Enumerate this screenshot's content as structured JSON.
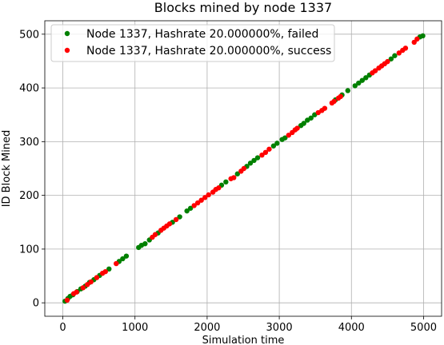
{
  "chart_data": {
    "type": "scatter",
    "title": "Blocks mined by node 1337",
    "xlabel": "Simulation time",
    "ylabel": "ID Block Mined",
    "xlim": [
      -250,
      5250
    ],
    "ylim": [
      -25,
      525
    ],
    "xticks": [
      0,
      1000,
      2000,
      3000,
      4000,
      5000
    ],
    "yticks": [
      0,
      100,
      200,
      300,
      400,
      500
    ],
    "grid": true,
    "legend_position": "top-left",
    "series": [
      {
        "name": "Node 1337, Hashrate 20.000000%, failed",
        "color": "#008000",
        "points": [
          [
            30,
            3
          ],
          [
            70,
            8
          ],
          [
            100,
            12
          ],
          [
            140,
            15
          ],
          [
            200,
            21
          ],
          [
            250,
            26
          ],
          [
            310,
            31
          ],
          [
            370,
            38
          ],
          [
            430,
            43
          ],
          [
            510,
            51
          ],
          [
            640,
            63
          ],
          [
            780,
            77
          ],
          [
            830,
            82
          ],
          [
            880,
            87
          ],
          [
            1050,
            103
          ],
          [
            1090,
            107
          ],
          [
            1140,
            110
          ],
          [
            1200,
            117
          ],
          [
            1320,
            130
          ],
          [
            1520,
            150
          ],
          [
            1620,
            160
          ],
          [
            1720,
            171
          ],
          [
            1770,
            176
          ],
          [
            2200,
            219
          ],
          [
            2260,
            225
          ],
          [
            2420,
            240
          ],
          [
            2550,
            254
          ],
          [
            2600,
            260
          ],
          [
            2650,
            265
          ],
          [
            2700,
            270
          ],
          [
            2920,
            292
          ],
          [
            2970,
            297
          ],
          [
            3040,
            304
          ],
          [
            3080,
            307
          ],
          [
            3300,
            330
          ],
          [
            3340,
            334
          ],
          [
            3390,
            340
          ],
          [
            3440,
            344
          ],
          [
            3490,
            350
          ],
          [
            3780,
            378
          ],
          [
            3870,
            387
          ],
          [
            3950,
            395
          ],
          [
            4050,
            404
          ],
          [
            4100,
            409
          ],
          [
            4150,
            414
          ],
          [
            4200,
            419
          ],
          [
            4250,
            424
          ],
          [
            4550,
            454
          ],
          [
            4600,
            460
          ],
          [
            4950,
            495
          ],
          [
            4990,
            497
          ]
        ]
      },
      {
        "name": "Node 1337, Hashrate 20.000000%, success",
        "color": "#ff0000",
        "points": [
          [
            60,
            5
          ],
          [
            150,
            17
          ],
          [
            190,
            20
          ],
          [
            280,
            28
          ],
          [
            340,
            34
          ],
          [
            390,
            39
          ],
          [
            470,
            47
          ],
          [
            550,
            55
          ],
          [
            590,
            58
          ],
          [
            740,
            73
          ],
          [
            1240,
            122
          ],
          [
            1280,
            127
          ],
          [
            1360,
            135
          ],
          [
            1400,
            139
          ],
          [
            1440,
            143
          ],
          [
            1480,
            147
          ],
          [
            1570,
            155
          ],
          [
            1820,
            181
          ],
          [
            1870,
            186
          ],
          [
            1920,
            191
          ],
          [
            1970,
            196
          ],
          [
            2020,
            201
          ],
          [
            2080,
            206
          ],
          [
            2120,
            211
          ],
          [
            2160,
            214
          ],
          [
            2330,
            231
          ],
          [
            2370,
            233
          ],
          [
            2470,
            245
          ],
          [
            2510,
            250
          ],
          [
            2760,
            275
          ],
          [
            2810,
            280
          ],
          [
            2860,
            286
          ],
          [
            3130,
            312
          ],
          [
            3180,
            317
          ],
          [
            3220,
            322
          ],
          [
            3250,
            325
          ],
          [
            3540,
            354
          ],
          [
            3590,
            358
          ],
          [
            3630,
            362
          ],
          [
            3730,
            372
          ],
          [
            3760,
            375
          ],
          [
            3820,
            381
          ],
          [
            3850,
            384
          ],
          [
            4290,
            428
          ],
          [
            4330,
            432
          ],
          [
            4380,
            437
          ],
          [
            4420,
            441
          ],
          [
            4460,
            445
          ],
          [
            4500,
            449
          ],
          [
            4660,
            465
          ],
          [
            4710,
            470
          ],
          [
            4750,
            474
          ],
          [
            4870,
            485
          ],
          [
            4910,
            491
          ]
        ]
      }
    ]
  }
}
